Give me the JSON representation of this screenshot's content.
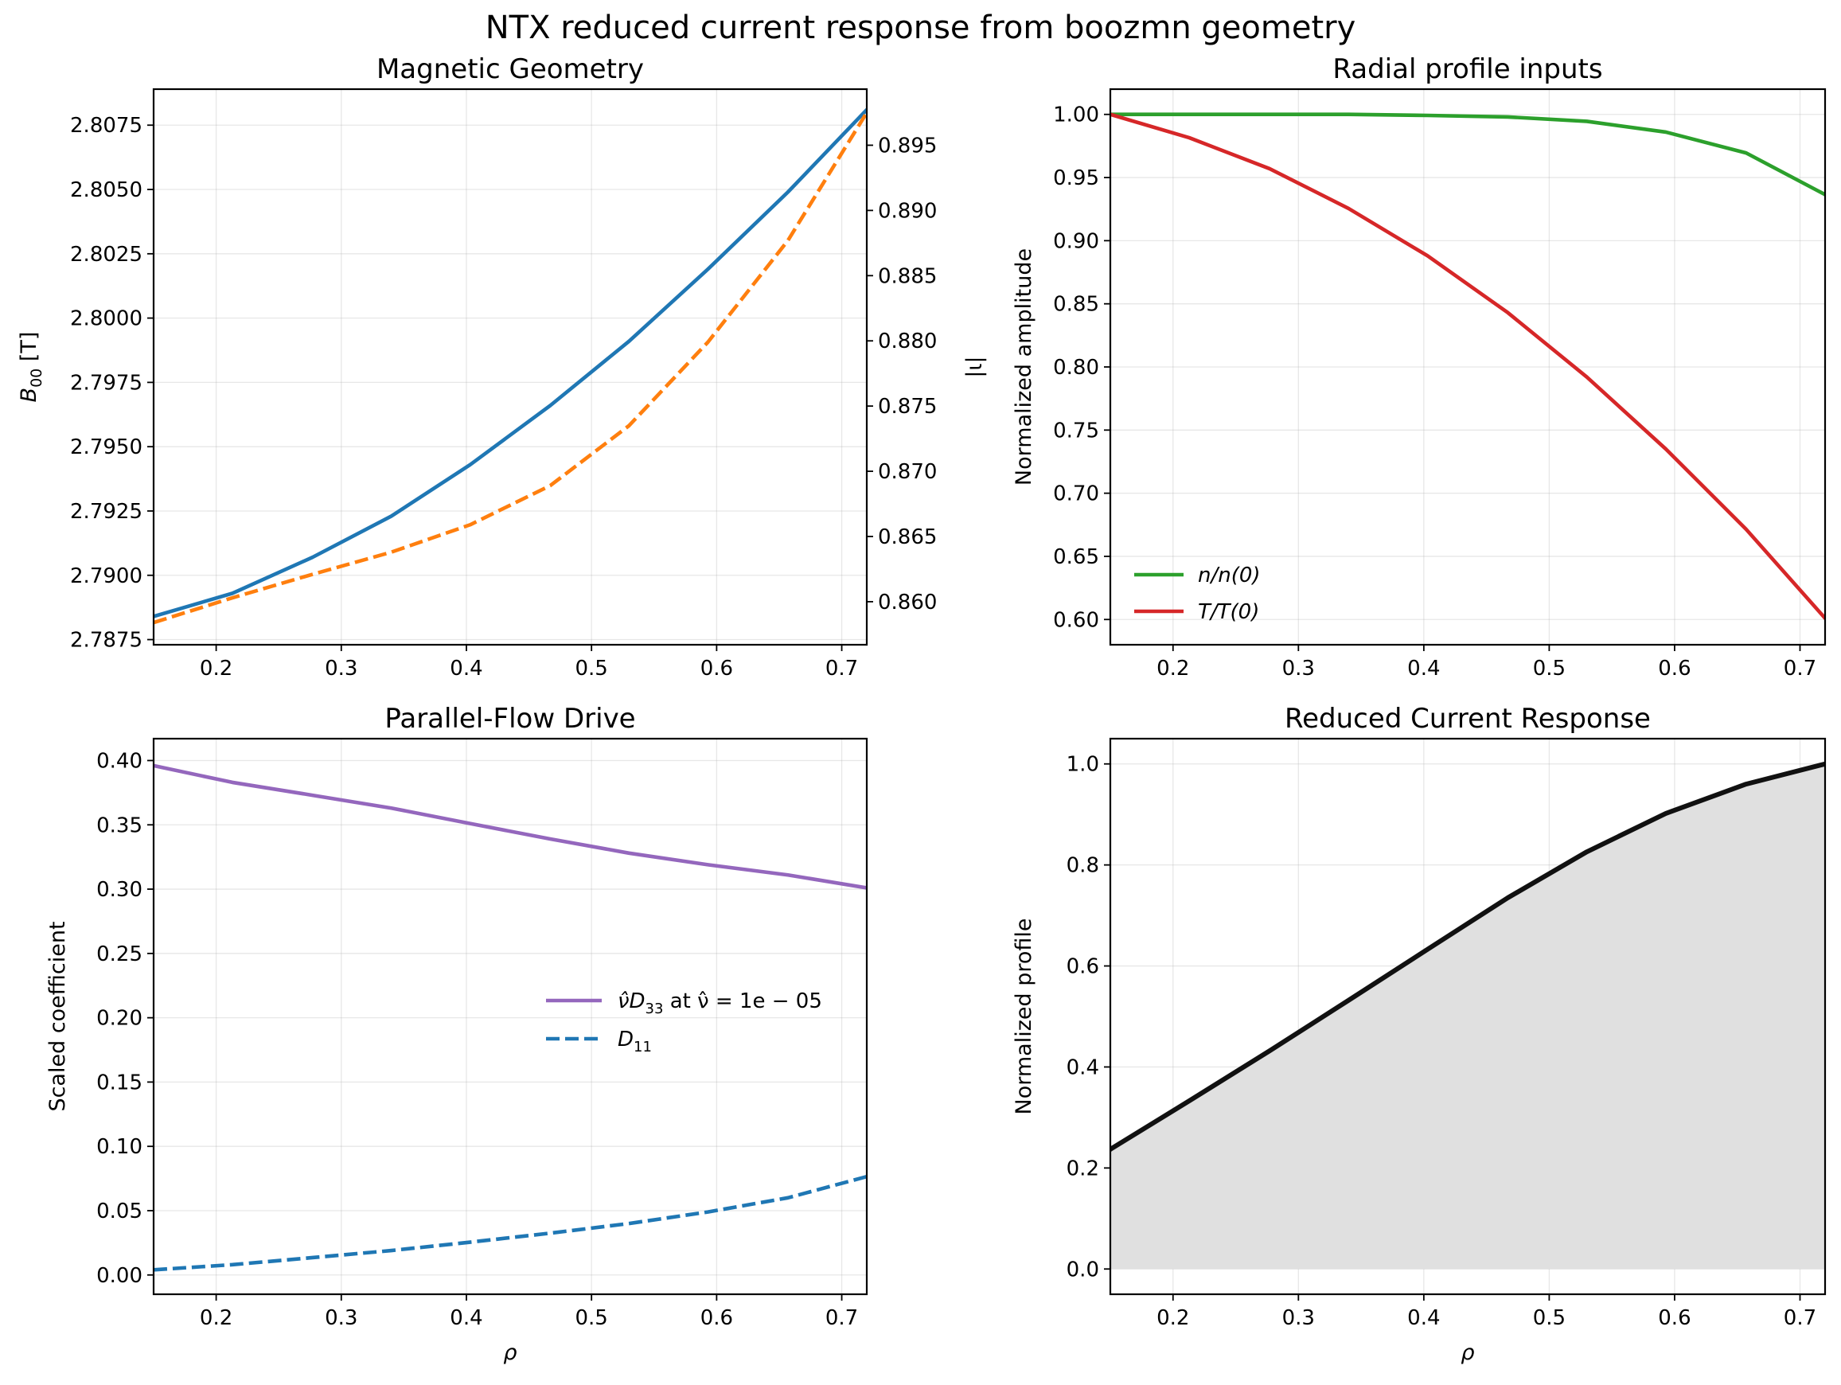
{
  "figure_title": "NTX reduced current response from boozmn geometry",
  "colors": {
    "blue": "#1f77b4",
    "orange": "#ff7f0e",
    "green": "#2ca02c",
    "red": "#d62728",
    "purple": "#9467bd",
    "black": "#111111",
    "fill_gray": "#e0e0e0"
  },
  "chart_data": [
    {
      "id": "geometry",
      "type": "line",
      "title": "Magnetic Geometry",
      "xlabel": "",
      "ylabel": "B_00 [T]",
      "y2label": "|ι|",
      "xlim": [
        0.15,
        0.72
      ],
      "ylim": [
        2.7873,
        2.8089
      ],
      "y2lim": [
        0.8567,
        0.8993
      ],
      "grid": true,
      "legend": "none",
      "x_ticks": [
        "0.2",
        "0.3",
        "0.4",
        "0.5",
        "0.6",
        "0.7"
      ],
      "y_ticks": [
        "2.7875",
        "2.7900",
        "2.7925",
        "2.7950",
        "2.7975",
        "2.8000",
        "2.8025",
        "2.8050",
        "2.8075"
      ],
      "y2_ticks": [
        "0.860",
        "0.865",
        "0.870",
        "0.875",
        "0.880",
        "0.885",
        "0.890",
        "0.895"
      ],
      "x": [
        0.15,
        0.213,
        0.277,
        0.34,
        0.403,
        0.467,
        0.53,
        0.593,
        0.657,
        0.72
      ],
      "series": [
        {
          "axis": "left",
          "color": "blue",
          "dash": "solid",
          "values": [
            2.7884,
            2.7893,
            2.7907,
            2.7923,
            2.7943,
            2.7966,
            2.7991,
            2.8019,
            2.8049,
            2.8081
          ]
        },
        {
          "axis": "right",
          "color": "orange",
          "dash": "dashed",
          "values": [
            0.8584,
            0.8603,
            0.8621,
            0.8638,
            0.8659,
            0.8689,
            0.8735,
            0.8799,
            0.8877,
            0.8975
          ]
        }
      ]
    },
    {
      "id": "profiles",
      "type": "line",
      "title": "Radial profile inputs",
      "xlabel": "",
      "ylabel": "Normalized amplitude",
      "xlim": [
        0.15,
        0.72
      ],
      "ylim": [
        0.58,
        1.02
      ],
      "grid": true,
      "legend": "lower-left",
      "x_ticks": [
        "0.2",
        "0.3",
        "0.4",
        "0.5",
        "0.6",
        "0.7"
      ],
      "y_ticks": [
        "0.60",
        "0.65",
        "0.70",
        "0.75",
        "0.80",
        "0.85",
        "0.90",
        "0.95",
        "1.00"
      ],
      "x": [
        0.15,
        0.213,
        0.277,
        0.34,
        0.403,
        0.467,
        0.53,
        0.593,
        0.657,
        0.72
      ],
      "series": [
        {
          "name": "n/n(0)",
          "color": "green",
          "dash": "solid",
          "values": [
            1.0,
            1.0,
            1.0,
            1.0,
            0.9992,
            0.998,
            0.9945,
            0.986,
            0.9695,
            0.9365
          ]
        },
        {
          "name": "T/T(0)",
          "color": "red",
          "dash": "solid",
          "values": [
            1.0,
            0.9815,
            0.957,
            0.9255,
            0.888,
            0.843,
            0.792,
            0.735,
            0.6715,
            0.601
          ]
        }
      ]
    },
    {
      "id": "drive",
      "type": "line",
      "title": "Parallel-Flow Drive",
      "xlabel": "ρ",
      "ylabel": "Scaled coefficient",
      "xlim": [
        0.15,
        0.72
      ],
      "ylim": [
        -0.015,
        0.417
      ],
      "grid": true,
      "legend": "center-right",
      "x_ticks": [
        "0.2",
        "0.3",
        "0.4",
        "0.5",
        "0.6",
        "0.7"
      ],
      "y_ticks": [
        "0.00",
        "0.05",
        "0.10",
        "0.15",
        "0.20",
        "0.25",
        "0.30",
        "0.35",
        "0.40"
      ],
      "x": [
        0.15,
        0.213,
        0.277,
        0.34,
        0.403,
        0.467,
        0.53,
        0.593,
        0.657,
        0.72
      ],
      "series": [
        {
          "name_prefix": "ν̂D",
          "name_sub": "33",
          "name_suffix": " at ν̂ = 1e − 05",
          "color": "purple",
          "dash": "solid",
          "values": [
            0.396,
            0.383,
            0.373,
            0.363,
            0.351,
            0.339,
            0.328,
            0.319,
            0.311,
            0.301
          ]
        },
        {
          "name_prefix": "D",
          "name_sub": "11",
          "name_suffix": "",
          "color": "blue",
          "dash": "dashed",
          "values": [
            0.004,
            0.008,
            0.0135,
            0.019,
            0.0255,
            0.0325,
            0.04,
            0.049,
            0.06,
            0.0765
          ]
        }
      ]
    },
    {
      "id": "response",
      "type": "area",
      "title": "Reduced Current Response",
      "xlabel": "ρ",
      "ylabel": "Normalized profile",
      "xlim": [
        0.15,
        0.72
      ],
      "ylim": [
        -0.05,
        1.05
      ],
      "grid": true,
      "legend": "none",
      "x_ticks": [
        "0.2",
        "0.3",
        "0.4",
        "0.5",
        "0.6",
        "0.7"
      ],
      "y_ticks": [
        "0.0",
        "0.2",
        "0.4",
        "0.6",
        "0.8",
        "1.0"
      ],
      "x": [
        0.15,
        0.213,
        0.277,
        0.34,
        0.403,
        0.467,
        0.53,
        0.593,
        0.657,
        0.72
      ],
      "series": [
        {
          "color": "black",
          "dash": "solid",
          "fill": "fill_gray",
          "values": [
            0.237,
            0.333,
            0.432,
            0.532,
            0.633,
            0.735,
            0.826,
            0.902,
            0.96,
            1.0
          ]
        }
      ]
    }
  ]
}
